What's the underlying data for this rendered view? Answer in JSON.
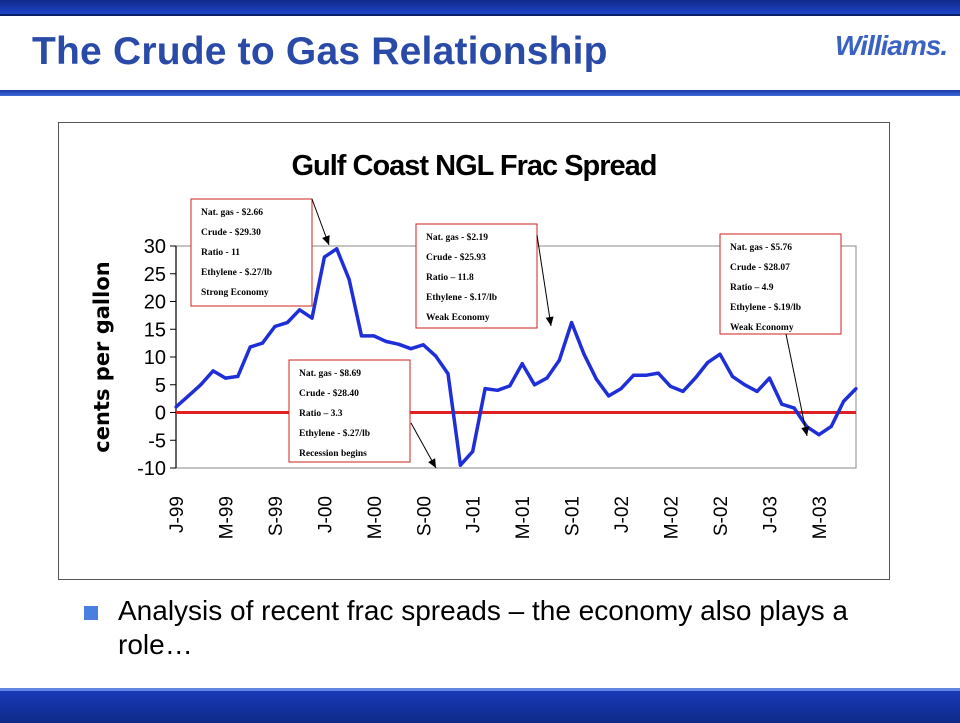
{
  "slide": {
    "title": "The Crude to Gas Relationship",
    "logo_text": "Williams.",
    "bullet": "Analysis of recent frac spreads – the economy also plays a role…"
  },
  "colors": {
    "accent": "#2a4aa8",
    "series_line": "#1f2fd8",
    "zero_line": "#e02020",
    "callout_border": "#d02020"
  },
  "chart_data": {
    "type": "line",
    "title": "Gulf Coast NGL Frac Spread",
    "ylabel": "cents per gallon",
    "xlabel": "",
    "ylim": [
      -10,
      30
    ],
    "yticks": [
      "30",
      "25",
      "20",
      "15",
      "10",
      "5",
      "0",
      "-5",
      "-10"
    ],
    "xticks": [
      "J-99",
      "M-99",
      "S-99",
      "J-00",
      "M-00",
      "S-00",
      "J-01",
      "M-01",
      "S-01",
      "J-02",
      "M-02",
      "S-02",
      "J-03",
      "M-03"
    ],
    "x": [
      "Jan-99",
      "Feb-99",
      "Mar-99",
      "Apr-99",
      "May-99",
      "Jun-99",
      "Jul-99",
      "Aug-99",
      "Sep-99",
      "Oct-99",
      "Nov-99",
      "Dec-99",
      "Jan-00",
      "Feb-00",
      "Mar-00",
      "Apr-00",
      "May-00",
      "Jun-00",
      "Jul-00",
      "Aug-00",
      "Sep-00",
      "Oct-00",
      "Nov-00",
      "Dec-00",
      "Jan-01",
      "Feb-01",
      "Mar-01",
      "Apr-01",
      "May-01",
      "Jun-01",
      "Jul-01",
      "Aug-01",
      "Sep-01",
      "Oct-01",
      "Nov-01",
      "Dec-01",
      "Jan-02",
      "Feb-02",
      "Mar-02",
      "Apr-02",
      "May-02",
      "Jun-02",
      "Jul-02",
      "Aug-02",
      "Sep-02",
      "Oct-02",
      "Nov-02",
      "Dec-02",
      "Jan-03",
      "Feb-03",
      "Mar-03",
      "Apr-03",
      "May-03",
      "Jun-03",
      "Jul-03",
      "Aug-03"
    ],
    "series": [
      {
        "values": [
          1.0,
          3.0,
          5.0,
          7.5,
          6.2,
          6.5,
          11.8,
          12.5,
          15.5,
          16.2,
          18.5,
          17.0,
          28.0,
          29.5,
          24.0,
          13.8,
          13.8,
          12.8,
          12.3,
          11.5,
          12.2,
          10.2,
          7.0,
          -9.5,
          -7.0,
          4.3,
          4.0,
          4.8,
          8.8,
          5.0,
          6.2,
          9.4,
          16.2,
          10.5,
          6.0,
          3.0,
          4.3,
          6.7,
          6.7,
          7.1,
          4.7,
          3.8,
          6.2,
          9.0,
          10.5,
          6.5,
          5.0,
          3.8,
          6.2,
          1.5,
          0.8,
          -2.5,
          -4.0,
          -2.5,
          2.0,
          4.3
        ]
      }
    ],
    "reference_line": 0,
    "grid": false,
    "annotations": [
      {
        "lines": [
          "Nat. gas - $2.66",
          "Crude - $29.30",
          "Ratio - 11",
          "Ethylene - $.27/lb",
          "Strong Economy"
        ],
        "points_to": "Feb-00"
      },
      {
        "lines": [
          "Nat. gas - $8.69",
          "Crude - $28.40",
          "Ratio – 3.3",
          "Ethylene - $.27/lb",
          "Recession begins"
        ],
        "points_to": "Dec-00"
      },
      {
        "lines": [
          "Nat. gas - $2.19",
          "Crude - $25.93",
          "Ratio – 11.8",
          "Ethylene - $.17/lb",
          "Weak Economy"
        ],
        "points_to": "Sep-01"
      },
      {
        "lines": [
          "Nat. gas - $5.76",
          "Crude - $28.07",
          "Ratio – 4.9",
          "Ethylene - $.19/lb",
          "Weak Economy"
        ],
        "points_to": "May-03"
      }
    ]
  }
}
